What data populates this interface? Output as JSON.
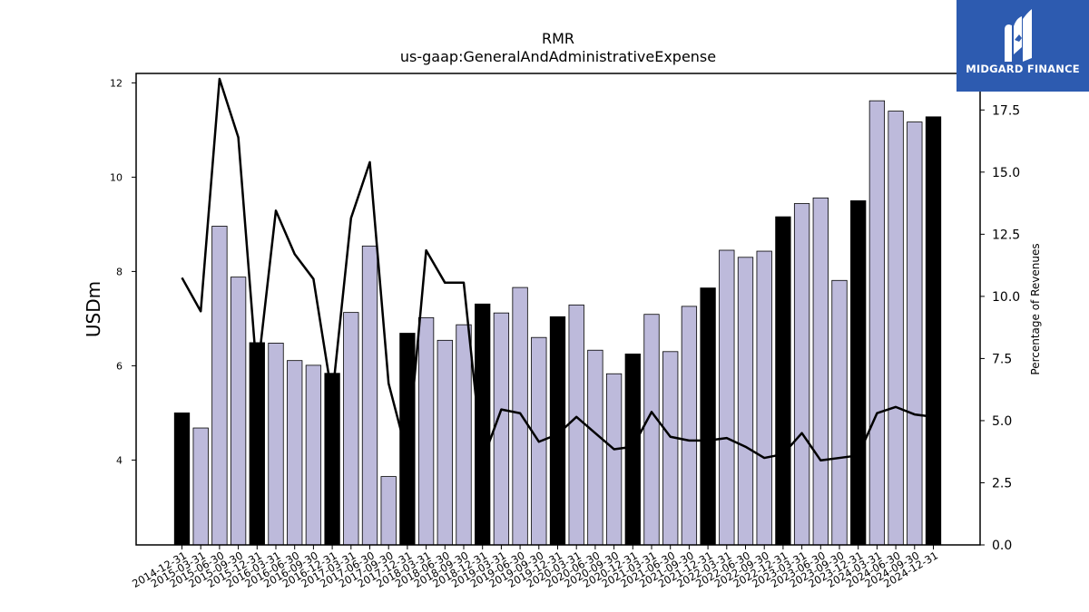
{
  "logo": {
    "text": "MIDGARD FINANCE"
  },
  "colors": {
    "annual_bar": "#000000",
    "quarterly_bar": "#bdbadb",
    "line": "#000000",
    "logo_bg": "#2d5bb0"
  },
  "chart_data": {
    "type": "bar",
    "title": "RMR",
    "subtitle": "us-gaap:GeneralAndAdministrativeExpense",
    "ylabel": "USDm",
    "y2label": "Percentage of Revenues",
    "ylim": [
      2.2,
      12.2
    ],
    "y2lim": [
      0.0,
      18.97
    ],
    "yticks": [
      4,
      6,
      8,
      10,
      12
    ],
    "y2ticks": [
      0.0,
      2.5,
      5.0,
      7.5,
      10.0,
      12.5,
      15.0,
      17.5
    ],
    "categories": [
      "2014-12-31",
      "2015-03-31",
      "2015-06-30",
      "2015-09-30",
      "2015-12-31",
      "2016-03-31",
      "2016-06-30",
      "2016-09-30",
      "2016-12-31",
      "2017-03-31",
      "2017-06-30",
      "2017-09-30",
      "2017-12-31",
      "2018-03-31",
      "2018-06-30",
      "2018-09-30",
      "2018-12-31",
      "2019-03-31",
      "2019-06-30",
      "2019-09-30",
      "2019-12-31",
      "2020-03-31",
      "2020-06-30",
      "2020-09-30",
      "2020-12-31",
      "2021-03-31",
      "2021-06-30",
      "2021-09-30",
      "2021-12-31",
      "2022-03-31",
      "2022-06-30",
      "2022-09-30",
      "2022-12-31",
      "2023-03-31",
      "2023-06-30",
      "2023-09-30",
      "2023-12-31",
      "2024-03-31",
      "2024-06-30",
      "2024-09-30",
      "2024-12-31"
    ],
    "series": [
      {
        "kind": "bar",
        "values": [
          5.0,
          4.68,
          8.96,
          7.88,
          6.49,
          6.48,
          6.11,
          6.01,
          5.84,
          7.13,
          8.54,
          3.65,
          6.69,
          7.02,
          6.54,
          6.87,
          7.31,
          7.12,
          7.66,
          6.6,
          7.04,
          7.29,
          6.33,
          5.83,
          6.25,
          7.09,
          6.3,
          7.26,
          7.65,
          8.45,
          8.3,
          8.43,
          9.16,
          9.44,
          9.56,
          7.81,
          9.5,
          11.62,
          11.4,
          11.17,
          11.28
        ],
        "annual": [
          true,
          false,
          false,
          false,
          true,
          false,
          false,
          false,
          true,
          false,
          false,
          false,
          true,
          false,
          false,
          false,
          true,
          false,
          false,
          false,
          true,
          false,
          false,
          false,
          true,
          false,
          false,
          false,
          true,
          false,
          false,
          false,
          true,
          false,
          false,
          false,
          true,
          false,
          false,
          false,
          true
        ]
      },
      {
        "kind": "line",
        "axis": "right",
        "values": [
          10.75,
          9.4,
          18.75,
          16.4,
          6.8,
          13.45,
          11.7,
          10.7,
          5.95,
          13.15,
          15.4,
          6.5,
          3.6,
          11.85,
          10.55,
          10.55,
          3.4,
          5.45,
          5.3,
          4.15,
          4.45,
          5.15,
          4.5,
          3.85,
          3.95,
          5.35,
          4.35,
          4.2,
          4.2,
          4.3,
          3.95,
          3.5,
          3.65,
          4.5,
          3.4,
          3.5,
          3.6,
          5.3,
          5.55,
          5.25,
          5.15
        ]
      }
    ]
  }
}
